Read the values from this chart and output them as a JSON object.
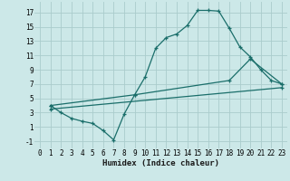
{
  "xlabel": "Humidex (Indice chaleur)",
  "bg_color": "#cce8e8",
  "grid_color": "#aacccc",
  "line_color": "#1a6e6a",
  "curve1_x": [
    1,
    2,
    3,
    4,
    5,
    6,
    7,
    8,
    9,
    10,
    11,
    12,
    13,
    14,
    15,
    16,
    17,
    18,
    19,
    20,
    21,
    22,
    23
  ],
  "curve1_y": [
    4.0,
    3.0,
    2.2,
    1.8,
    1.5,
    0.5,
    -0.8,
    2.8,
    5.5,
    8.0,
    12.0,
    13.5,
    14.0,
    15.2,
    17.3,
    17.3,
    17.2,
    14.8,
    12.2,
    10.8,
    9.0,
    7.5,
    7.0
  ],
  "curve2_x": [
    1,
    9,
    18,
    20,
    23
  ],
  "curve2_y": [
    4.0,
    5.5,
    7.5,
    10.5,
    7.0
  ],
  "curve3_x": [
    1,
    23
  ],
  "curve3_y": [
    3.5,
    6.5
  ],
  "xlim": [
    -0.5,
    23.5
  ],
  "ylim": [
    -2,
    18.5
  ],
  "xticks": [
    0,
    1,
    2,
    3,
    4,
    5,
    6,
    7,
    8,
    9,
    10,
    11,
    12,
    13,
    14,
    15,
    16,
    17,
    18,
    19,
    20,
    21,
    22,
    23
  ],
  "yticks": [
    -1,
    1,
    3,
    5,
    7,
    9,
    11,
    13,
    15,
    17
  ],
  "tick_fontsize": 5.5,
  "xlabel_fontsize": 6.5,
  "linewidth": 0.9,
  "markersize": 3.5
}
